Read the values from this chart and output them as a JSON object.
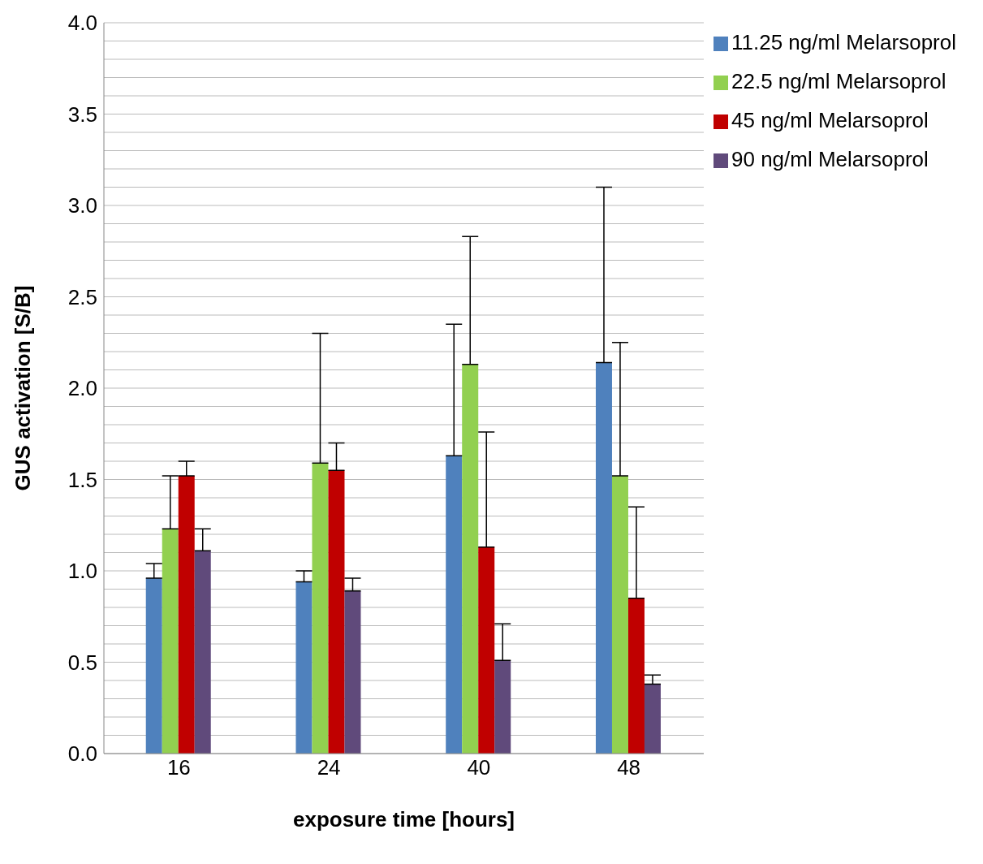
{
  "chart_data": {
    "type": "bar",
    "xlabel": "exposure time [hours]",
    "ylabel": "GUS activation [S/B]",
    "categories": [
      "16",
      "24",
      "40",
      "48"
    ],
    "series": [
      {
        "name": "11.25 ng/ml Melarsoprol",
        "color": "#4f81bd",
        "values": [
          0.96,
          0.94,
          1.63,
          2.14
        ],
        "errors": [
          [
            0.96,
            1.04
          ],
          [
            0.94,
            1.0
          ],
          [
            1.63,
            2.35
          ],
          [
            2.14,
            3.1
          ]
        ]
      },
      {
        "name": "22.5 ng/ml Melarsoprol",
        "color": "#92d050",
        "values": [
          1.23,
          1.59,
          2.13,
          1.52
        ],
        "errors": [
          [
            1.23,
            1.52
          ],
          [
            1.59,
            2.3
          ],
          [
            2.13,
            2.83
          ],
          [
            1.52,
            2.25
          ]
        ]
      },
      {
        "name": "45 ng/ml Melarsoprol",
        "color": "#c00000",
        "values": [
          1.52,
          1.55,
          1.13,
          0.85
        ],
        "errors": [
          [
            1.52,
            1.6
          ],
          [
            1.55,
            1.7
          ],
          [
            1.13,
            1.76
          ],
          [
            0.85,
            1.35
          ]
        ]
      },
      {
        "name": "90 ng/ml Melarsoprol",
        "color": "#604a7b",
        "values": [
          1.11,
          0.89,
          0.51,
          0.38
        ],
        "errors": [
          [
            1.11,
            1.23
          ],
          [
            0.89,
            0.96
          ],
          [
            0.51,
            0.71
          ],
          [
            0.38,
            0.43
          ]
        ]
      }
    ],
    "ylim": [
      0,
      4
    ],
    "yticks": [
      {
        "value": 0,
        "label": "0.0"
      },
      {
        "value": 0.1,
        "label": null
      },
      {
        "value": 0.2,
        "label": null
      },
      {
        "value": 0.3,
        "label": null
      },
      {
        "value": 0.4,
        "label": null
      },
      {
        "value": 0.5,
        "label": "0.5"
      },
      {
        "value": 0.6,
        "label": null
      },
      {
        "value": 0.7,
        "label": null
      },
      {
        "value": 0.8,
        "label": null
      },
      {
        "value": 0.9,
        "label": null
      },
      {
        "value": 1,
        "label": "1.0"
      },
      {
        "value": 1.1,
        "label": null
      },
      {
        "value": 1.2,
        "label": null
      },
      {
        "value": 1.3,
        "label": null
      },
      {
        "value": 1.4,
        "label": null
      },
      {
        "value": 1.5,
        "label": "1.5"
      },
      {
        "value": 1.6,
        "label": null
      },
      {
        "value": 1.7,
        "label": null
      },
      {
        "value": 1.8,
        "label": null
      },
      {
        "value": 1.9,
        "label": null
      },
      {
        "value": 2,
        "label": "2.0"
      },
      {
        "value": 2.1,
        "label": null
      },
      {
        "value": 2.2,
        "label": null
      },
      {
        "value": 2.3,
        "label": null
      },
      {
        "value": 2.4,
        "label": null
      },
      {
        "value": 2.5,
        "label": "2.5"
      },
      {
        "value": 2.6,
        "label": null
      },
      {
        "value": 2.7,
        "label": null
      },
      {
        "value": 2.8,
        "label": null
      },
      {
        "value": 2.9,
        "label": null
      },
      {
        "value": 3,
        "label": "3.0"
      },
      {
        "value": 3.1,
        "label": null
      },
      {
        "value": 3.2,
        "label": null
      },
      {
        "value": 3.3,
        "label": null
      },
      {
        "value": 3.4,
        "label": null
      },
      {
        "value": 3.5,
        "label": "3.5"
      },
      {
        "value": 3.6,
        "label": null
      },
      {
        "value": 3.7,
        "label": null
      },
      {
        "value": 3.8,
        "label": null
      },
      {
        "value": 3.9,
        "label": null
      },
      {
        "value": 4,
        "label": "4.0"
      }
    ],
    "grid": "y",
    "legend": "right"
  }
}
